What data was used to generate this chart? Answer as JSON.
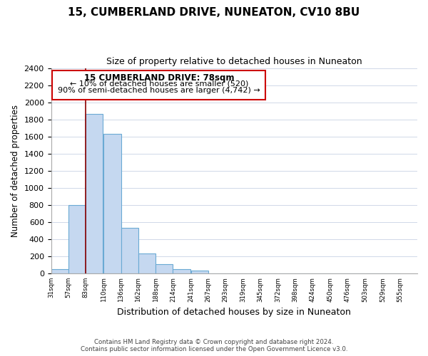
{
  "title": "15, CUMBERLAND DRIVE, NUNEATON, CV10 8BU",
  "subtitle": "Size of property relative to detached houses in Nuneaton",
  "bar_values": [
    50,
    800,
    1860,
    1630,
    530,
    235,
    105,
    50,
    30,
    0,
    0,
    0,
    0,
    0,
    0,
    0,
    0,
    0,
    0,
    0
  ],
  "bin_labels": [
    "31sqm",
    "57sqm",
    "83sqm",
    "110sqm",
    "136sqm",
    "162sqm",
    "188sqm",
    "214sqm",
    "241sqm",
    "267sqm",
    "293sqm",
    "319sqm",
    "345sqm",
    "372sqm",
    "398sqm",
    "424sqm",
    "450sqm",
    "476sqm",
    "503sqm",
    "529sqm",
    "555sqm"
  ],
  "bar_color": "#c5d8f0",
  "bar_edge_color": "#6aaad4",
  "ylabel": "Number of detached properties",
  "xlabel": "Distribution of detached houses by size in Nuneaton",
  "ylim": [
    0,
    2400
  ],
  "yticks": [
    0,
    200,
    400,
    600,
    800,
    1000,
    1200,
    1400,
    1600,
    1800,
    2000,
    2200,
    2400
  ],
  "property_line_label": "15 CUMBERLAND DRIVE: 78sqm",
  "annotation_line1": "← 10% of detached houses are smaller (520)",
  "annotation_line2": "90% of semi-detached houses are larger (4,742) →",
  "annotation_box_color": "#ffffff",
  "annotation_box_edge_color": "#cc0000",
  "property_line_color": "#8b0000",
  "footer_line1": "Contains HM Land Registry data © Crown copyright and database right 2024.",
  "footer_line2": "Contains public sector information licensed under the Open Government Licence v3.0.",
  "background_color": "#ffffff",
  "grid_color": "#d0d8e8",
  "bin_edges": [
    31,
    57,
    83,
    110,
    136,
    162,
    188,
    214,
    241,
    267,
    293,
    319,
    345,
    372,
    398,
    424,
    450,
    476,
    503,
    529,
    555
  ]
}
